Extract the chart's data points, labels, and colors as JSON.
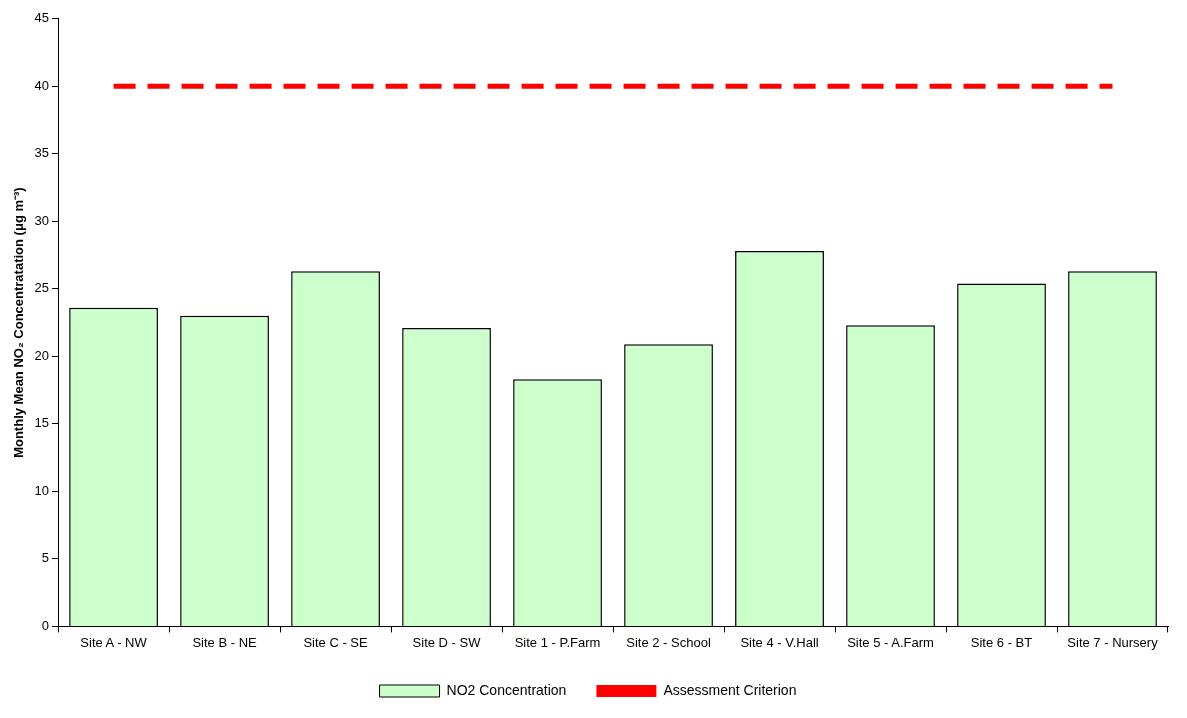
{
  "chart_data": {
    "type": "bar",
    "ylabel": "Monthly Mean NO₂ Concentratation (μg m⁻³)",
    "categories": [
      "Site A - NW",
      "Site B - NE",
      "Site C - SE",
      "Site D - SW",
      "Site 1 - P.Farm",
      "Site 2 - School",
      "Site 4 - V.Hall",
      "Site 5 - A.Farm",
      "Site 6 - BT",
      "Site 7 - Nursery"
    ],
    "series": [
      {
        "name": "NO2 Concentration",
        "color": "#ccffcc",
        "values": [
          23.6,
          23.0,
          26.3,
          22.1,
          18.3,
          20.9,
          27.8,
          22.3,
          25.4,
          26.3
        ]
      },
      {
        "name": "Assessment Criterion",
        "type": "line",
        "color": "#ff0000",
        "line_style": "dashed",
        "marker": "none",
        "values": [
          40,
          40,
          40,
          40,
          40,
          40,
          40,
          40,
          40,
          40
        ]
      }
    ],
    "ylim": [
      0,
      45
    ],
    "yticks": [
      0,
      5,
      10,
      15,
      20,
      25,
      30,
      35,
      40,
      45
    ],
    "grid": false,
    "legend": "bottom"
  }
}
